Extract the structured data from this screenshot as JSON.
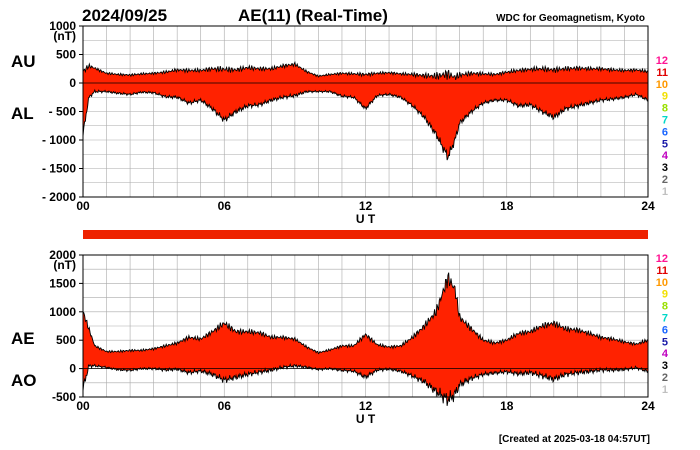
{
  "header": {
    "date": "2024/09/25",
    "title": "AE(11) (Real-Time)",
    "source": "WDC for Geomagnetism, Kyoto",
    "footer": "[Created at 2025-03-18 04:57UT]"
  },
  "colors": {
    "fill": "#ff2200",
    "outline": "#000000",
    "grid": "#aaaaaa"
  },
  "legend": {
    "labels": [
      "12",
      "11",
      "10",
      "9",
      "8",
      "7",
      "6",
      "5",
      "4",
      "3",
      "2",
      "1"
    ],
    "colors": [
      "#ff1493",
      "#e00000",
      "#ff9900",
      "#f2e000",
      "#99e000",
      "#00d8c8",
      "#1a66ff",
      "#1a1aa8",
      "#c000c0",
      "#000000",
      "#666666",
      "#c0c0c0"
    ]
  },
  "chart_data": [
    {
      "type": "area",
      "name": "AU/AL",
      "panel_labels": [
        "AU",
        "AL"
      ],
      "unit": "(nT)",
      "xlabel": "U T",
      "xlim": [
        0,
        24
      ],
      "xticks": [
        0,
        6,
        12,
        18,
        24
      ],
      "xtick_labels": [
        "00",
        "06",
        "12",
        "18",
        "24"
      ],
      "ylim": [
        -2000,
        1000
      ],
      "yticks": [
        1000,
        500,
        0,
        -500,
        -1000,
        -1500,
        -2000
      ],
      "ytick_labels": [
        "1000",
        "500",
        "0",
        "- 500",
        "- 1000",
        "- 1500",
        "- 2000"
      ],
      "grid": true,
      "x": [
        0,
        0.25,
        0.5,
        1,
        1.5,
        2,
        2.5,
        3,
        3.5,
        4,
        4.5,
        5,
        5.5,
        6,
        6.5,
        7,
        7.5,
        8,
        8.5,
        9,
        9.5,
        10,
        10.5,
        11,
        11.5,
        12,
        12.5,
        13,
        13.5,
        14,
        14.5,
        15,
        15.5,
        15.8,
        16,
        16.5,
        17,
        17.5,
        18,
        18.5,
        19,
        19.5,
        20,
        20.5,
        21,
        21.5,
        22,
        22.5,
        23,
        23.5,
        24
      ],
      "series": [
        {
          "name": "AU",
          "values": [
            200,
            300,
            260,
            170,
            150,
            140,
            160,
            170,
            190,
            230,
            220,
            220,
            250,
            240,
            230,
            270,
            250,
            250,
            300,
            330,
            200,
            120,
            150,
            170,
            160,
            150,
            170,
            180,
            160,
            150,
            130,
            120,
            160,
            100,
            140,
            170,
            160,
            150,
            190,
            220,
            240,
            250,
            230,
            250,
            260,
            250,
            250,
            230,
            220,
            230,
            200
          ]
        },
        {
          "name": "AL",
          "values": [
            -900,
            -250,
            -150,
            -150,
            -180,
            -200,
            -160,
            -170,
            -240,
            -250,
            -350,
            -300,
            -450,
            -650,
            -500,
            -400,
            -380,
            -300,
            -250,
            -220,
            -150,
            -150,
            -150,
            -230,
            -250,
            -450,
            -220,
            -200,
            -250,
            -400,
            -600,
            -900,
            -1300,
            -1000,
            -700,
            -500,
            -350,
            -300,
            -300,
            -400,
            -380,
            -500,
            -600,
            -450,
            -400,
            -350,
            -300,
            -280,
            -250,
            -200,
            -300
          ]
        }
      ]
    },
    {
      "type": "area",
      "name": "AE/AO",
      "panel_labels": [
        "AE",
        "AO"
      ],
      "unit": "(nT)",
      "xlabel": "U T",
      "xlim": [
        0,
        24
      ],
      "xticks": [
        0,
        6,
        12,
        18,
        24
      ],
      "xtick_labels": [
        "00",
        "06",
        "12",
        "18",
        "24"
      ],
      "ylim": [
        -500,
        2000
      ],
      "yticks": [
        2000,
        1500,
        1000,
        500,
        0,
        -500
      ],
      "ytick_labels": [
        "2000",
        "1500",
        "1000",
        "500",
        "0",
        "-500"
      ],
      "grid": true,
      "x": [
        0,
        0.25,
        0.5,
        1,
        1.5,
        2,
        2.5,
        3,
        3.5,
        4,
        4.5,
        5,
        5.5,
        6,
        6.5,
        7,
        7.5,
        8,
        8.5,
        9,
        9.5,
        10,
        10.5,
        11,
        11.5,
        12,
        12.5,
        13,
        13.5,
        14,
        14.5,
        15,
        15.5,
        15.8,
        16,
        16.5,
        17,
        17.5,
        18,
        18.5,
        19,
        19.5,
        20,
        20.5,
        21,
        21.5,
        22,
        22.5,
        23,
        23.5,
        24
      ],
      "series": [
        {
          "name": "AE",
          "values": [
            1000,
            700,
            400,
            300,
            300,
            320,
            320,
            350,
            400,
            450,
            550,
            520,
            650,
            800,
            650,
            650,
            630,
            550,
            550,
            520,
            380,
            280,
            330,
            400,
            400,
            600,
            420,
            380,
            400,
            550,
            750,
            1000,
            1600,
            1400,
            900,
            700,
            500,
            450,
            500,
            620,
            650,
            750,
            800,
            700,
            680,
            620,
            550,
            520,
            470,
            430,
            500
          ]
        },
        {
          "name": "AO",
          "values": [
            -350,
            50,
            50,
            20,
            -20,
            -30,
            0,
            0,
            -25,
            -10,
            -70,
            -40,
            -100,
            -200,
            -150,
            -100,
            -60,
            -25,
            25,
            50,
            25,
            -15,
            0,
            -30,
            -45,
            -150,
            -25,
            -10,
            -45,
            -130,
            -230,
            -400,
            -550,
            -450,
            -280,
            -170,
            -100,
            -75,
            -55,
            -90,
            -70,
            -125,
            -185,
            -100,
            -70,
            -50,
            -25,
            -25,
            -15,
            15,
            -50
          ]
        }
      ]
    }
  ]
}
